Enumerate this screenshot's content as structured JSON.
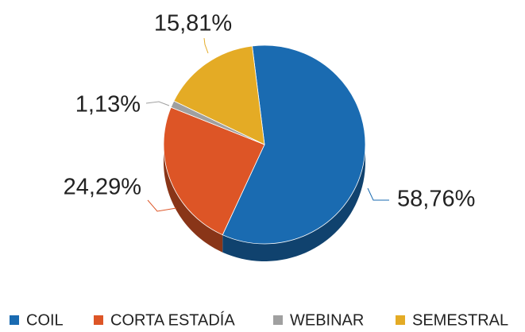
{
  "chart_data": {
    "type": "pie",
    "categories": [
      "COIL",
      "CORTA ESTADÍA",
      "WEBINAR",
      "SEMESTRAL"
    ],
    "values": [
      58.76,
      24.29,
      1.13,
      15.81
    ],
    "value_labels": [
      "58,76%",
      "24,29%",
      "1,13%",
      "15,81%"
    ],
    "colors": [
      "#1a6bb1",
      "#dd5526",
      "#a0a0a0",
      "#e4ab25"
    ],
    "legend": "bottom"
  }
}
